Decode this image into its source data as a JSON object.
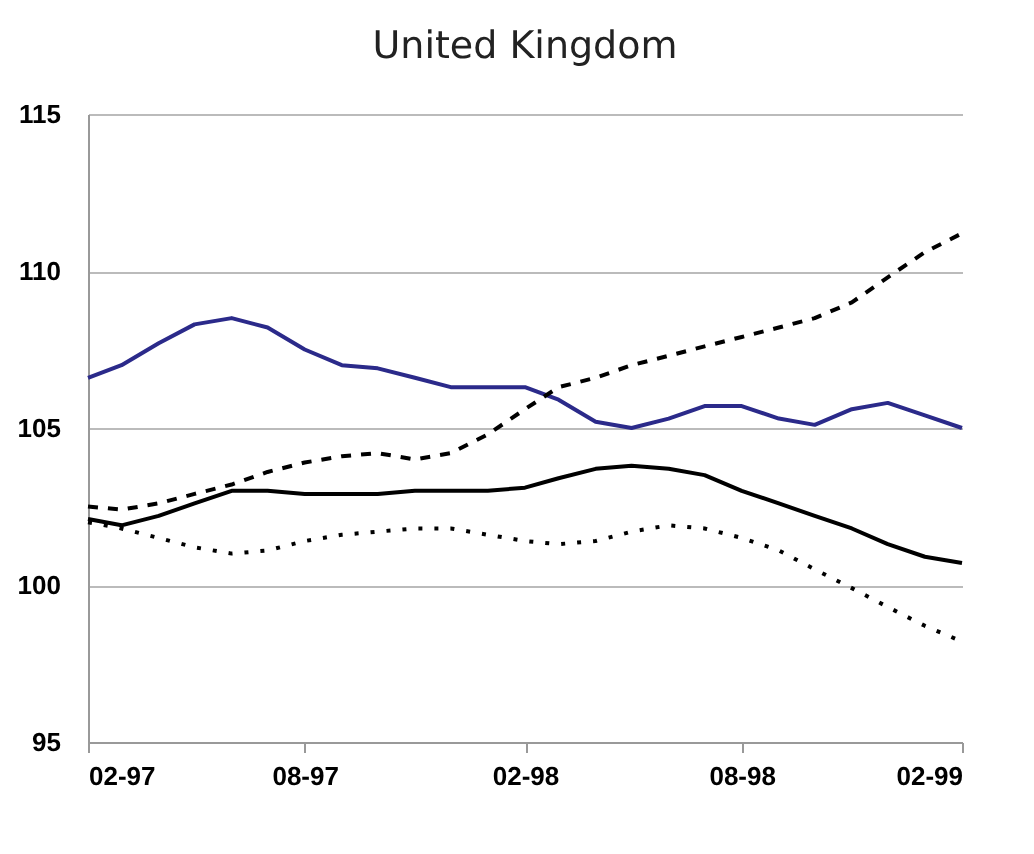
{
  "chart_data": {
    "type": "line",
    "title": "United Kingdom",
    "x": [
      "1997-02",
      "1997-03",
      "1997-04",
      "1997-05",
      "1997-06",
      "1997-07",
      "1997-08",
      "1997-09",
      "1997-10",
      "1997-11",
      "1997-12",
      "1998-01",
      "1998-02",
      "1998-03",
      "1998-04",
      "1998-05",
      "1998-06",
      "1998-07",
      "1998-08",
      "1998-09",
      "1998-10",
      "1998-11",
      "1998-12",
      "1999-01",
      "1999-02"
    ],
    "series": [
      {
        "color": "#2b2a8a",
        "line_style": "solid",
        "values": [
          106.6,
          107.0,
          107.7,
          108.3,
          108.5,
          108.2,
          107.5,
          107.0,
          106.9,
          106.6,
          106.3,
          106.3,
          106.3,
          105.9,
          105.2,
          105.0,
          105.3,
          105.7,
          105.7,
          105.3,
          105.1,
          105.6,
          105.8,
          105.4,
          105.0
        ]
      },
      {
        "color": "#000000",
        "line_style": "solid",
        "values": [
          102.1,
          101.9,
          102.2,
          102.6,
          103.0,
          103.0,
          102.9,
          102.9,
          102.9,
          103.0,
          103.0,
          103.0,
          103.1,
          103.4,
          103.7,
          103.8,
          103.7,
          103.5,
          103.0,
          102.6,
          102.2,
          101.8,
          101.3,
          100.9,
          100.7
        ]
      },
      {
        "color": "#000000",
        "line_style": "dashed",
        "values": [
          102.5,
          102.4,
          102.6,
          102.9,
          103.2,
          103.6,
          103.9,
          104.1,
          104.2,
          104.0,
          104.2,
          104.8,
          105.6,
          106.3,
          106.6,
          107.0,
          107.3,
          107.6,
          107.9,
          108.2,
          108.5,
          109.0,
          109.8,
          110.6,
          111.2
        ]
      },
      {
        "color": "#000000",
        "line_style": "dotted",
        "values": [
          102.0,
          101.8,
          101.5,
          101.2,
          101.0,
          101.1,
          101.4,
          101.6,
          101.7,
          101.8,
          101.8,
          101.6,
          101.4,
          101.3,
          101.4,
          101.7,
          101.9,
          101.8,
          101.5,
          101.1,
          100.5,
          99.9,
          99.3,
          98.7,
          98.2
        ]
      }
    ],
    "xlim": [
      "1997-02",
      "1999-02"
    ],
    "xticks": [
      {
        "value": "1997-02",
        "label": "02-97"
      },
      {
        "value": "1997-08",
        "label": "08-97"
      },
      {
        "value": "1998-02",
        "label": "02-98"
      },
      {
        "value": "1998-08",
        "label": "08-98"
      },
      {
        "value": "1999-02",
        "label": "02-99"
      }
    ],
    "ylim": [
      95,
      115
    ],
    "yticks": [
      95,
      100,
      105,
      110,
      115
    ],
    "grid": "y"
  }
}
